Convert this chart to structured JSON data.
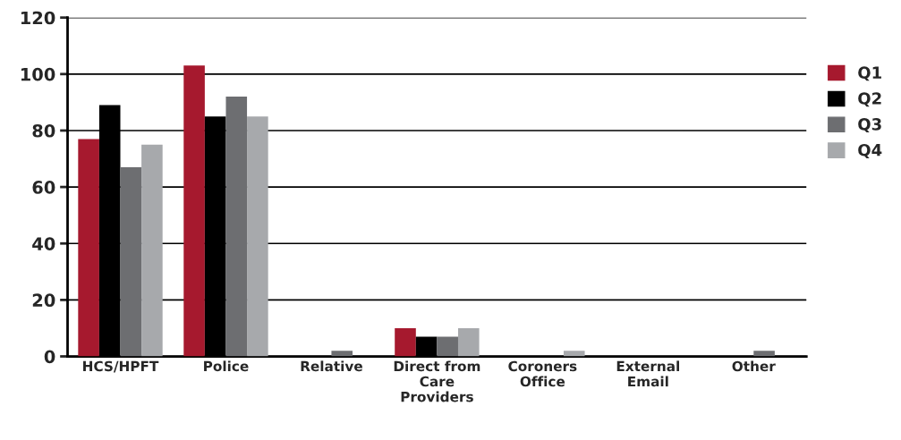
{
  "chart_data": {
    "type": "bar",
    "categories": [
      "HCS/HPFT",
      "Police",
      "Relative",
      "Direct from\nCare\nProviders",
      "Coroners\nOffice",
      "External\nEmail",
      "Other"
    ],
    "series": [
      {
        "name": "Q1",
        "color": "#a6192e",
        "values": [
          77,
          103,
          null,
          10,
          null,
          null,
          null
        ]
      },
      {
        "name": "Q2",
        "color": "#000000",
        "values": [
          89,
          85,
          null,
          7,
          null,
          null,
          null
        ]
      },
      {
        "name": "Q3",
        "color": "#6d6e71",
        "values": [
          67,
          92,
          2,
          7,
          null,
          null,
          2
        ]
      },
      {
        "name": "Q4",
        "color": "#a7a9ac",
        "values": [
          75,
          85,
          null,
          10,
          2,
          null,
          null
        ]
      }
    ],
    "ylim": [
      0,
      120
    ],
    "yticks": [
      0,
      20,
      40,
      60,
      80,
      100,
      120
    ],
    "grid": "y",
    "legend": "right"
  }
}
